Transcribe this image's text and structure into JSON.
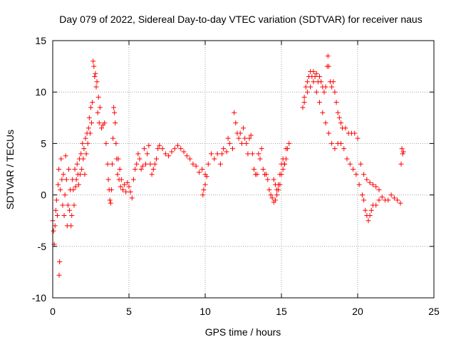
{
  "chart_data": {
    "type": "scatter",
    "title": "Day 079 of 2022, Sidereal Day-to-day VTEC variation (SDTVAR) for receiver naus",
    "xlabel": "GPS time / hours",
    "ylabel": "SDTVAR / TECUs",
    "xlim": [
      0,
      25
    ],
    "ylim": [
      -10,
      15
    ],
    "xticks": [
      0,
      5,
      10,
      15,
      20,
      25
    ],
    "yticks": [
      -10,
      -5,
      0,
      5,
      10,
      15
    ],
    "grid": true,
    "marker": "+",
    "color": "#ff0000",
    "series": [
      {
        "name": "SDTVAR",
        "points": [
          [
            0.0,
            -2.5
          ],
          [
            0.05,
            -3.5
          ],
          [
            0.1,
            -4.8
          ],
          [
            0.15,
            -3.0
          ],
          [
            0.2,
            -1.5
          ],
          [
            0.25,
            -0.5
          ],
          [
            0.3,
            -2.0
          ],
          [
            0.35,
            1.0
          ],
          [
            0.4,
            2.5
          ],
          [
            0.42,
            -7.8
          ],
          [
            0.45,
            -6.5
          ],
          [
            0.5,
            0.5
          ],
          [
            0.55,
            3.5
          ],
          [
            0.6,
            1.5
          ],
          [
            0.65,
            -1.0
          ],
          [
            0.7,
            2.0
          ],
          [
            0.75,
            -2.0
          ],
          [
            0.8,
            0.0
          ],
          [
            0.85,
            3.8
          ],
          [
            0.9,
            1.5
          ],
          [
            0.95,
            -3.0
          ],
          [
            1.0,
            -1.0
          ],
          [
            1.05,
            2.5
          ],
          [
            1.1,
            -1.5
          ],
          [
            1.15,
            0.5
          ],
          [
            1.2,
            -3.0
          ],
          [
            1.25,
            -2.0
          ],
          [
            1.3,
            1.5
          ],
          [
            1.35,
            0.5
          ],
          [
            1.4,
            -1.0
          ],
          [
            1.45,
            2.5
          ],
          [
            1.5,
            0.8
          ],
          [
            1.55,
            1.5
          ],
          [
            1.6,
            3.0
          ],
          [
            1.65,
            2.0
          ],
          [
            1.7,
            1.0
          ],
          [
            1.75,
            3.5
          ],
          [
            1.8,
            2.0
          ],
          [
            1.85,
            4.0
          ],
          [
            1.9,
            2.5
          ],
          [
            1.95,
            5.0
          ],
          [
            2.0,
            3.5
          ],
          [
            2.05,
            4.5
          ],
          [
            2.1,
            2.0
          ],
          [
            2.15,
            5.5
          ],
          [
            2.2,
            4.0
          ],
          [
            2.25,
            6.0
          ],
          [
            2.3,
            5.0
          ],
          [
            2.35,
            6.5
          ],
          [
            2.4,
            7.5
          ],
          [
            2.45,
            6.0
          ],
          [
            2.5,
            8.5
          ],
          [
            2.55,
            7.0
          ],
          [
            2.6,
            9.0
          ],
          [
            2.65,
            13.0
          ],
          [
            2.7,
            12.5
          ],
          [
            2.75,
            11.5
          ],
          [
            2.8,
            11.8
          ],
          [
            2.85,
            10.5
          ],
          [
            2.9,
            11.0
          ],
          [
            2.95,
            8.0
          ],
          [
            3.0,
            9.5
          ],
          [
            3.05,
            7.0
          ],
          [
            3.1,
            8.5
          ],
          [
            3.2,
            6.5
          ],
          [
            3.3,
            6.8
          ],
          [
            3.4,
            7.0
          ],
          [
            3.5,
            5.0
          ],
          [
            3.6,
            3.0
          ],
          [
            3.65,
            1.5
          ],
          [
            3.7,
            0.5
          ],
          [
            3.75,
            -0.5
          ],
          [
            3.8,
            -0.8
          ],
          [
            3.85,
            0.5
          ],
          [
            3.9,
            3.0
          ],
          [
            3.95,
            5.5
          ],
          [
            4.0,
            8.5
          ],
          [
            4.05,
            8.0
          ],
          [
            4.1,
            7.0
          ],
          [
            4.15,
            5.0
          ],
          [
            4.2,
            3.5
          ],
          [
            4.25,
            2.0
          ],
          [
            4.3,
            3.5
          ],
          [
            4.35,
            1.5
          ],
          [
            4.4,
            2.5
          ],
          [
            4.45,
            0.8
          ],
          [
            4.5,
            1.5
          ],
          [
            4.6,
            0.5
          ],
          [
            4.7,
            1.0
          ],
          [
            4.8,
            0.3
          ],
          [
            4.9,
            1.2
          ],
          [
            5.0,
            0.8
          ],
          [
            5.1,
            0.3
          ],
          [
            5.2,
            -0.3
          ],
          [
            5.3,
            1.5
          ],
          [
            5.4,
            2.5
          ],
          [
            5.5,
            3.0
          ],
          [
            5.6,
            4.0
          ],
          [
            5.7,
            3.5
          ],
          [
            5.8,
            2.5
          ],
          [
            5.9,
            2.8
          ],
          [
            6.0,
            4.5
          ],
          [
            6.1,
            3.0
          ],
          [
            6.2,
            4.0
          ],
          [
            6.3,
            4.8
          ],
          [
            6.4,
            3.0
          ],
          [
            6.5,
            2.0
          ],
          [
            6.6,
            2.5
          ],
          [
            6.7,
            3.0
          ],
          [
            6.8,
            3.5
          ],
          [
            6.9,
            4.5
          ],
          [
            7.0,
            4.8
          ],
          [
            7.2,
            4.5
          ],
          [
            7.4,
            4.0
          ],
          [
            7.6,
            3.8
          ],
          [
            7.8,
            4.2
          ],
          [
            8.0,
            4.5
          ],
          [
            8.2,
            4.8
          ],
          [
            8.4,
            4.5
          ],
          [
            8.6,
            4.2
          ],
          [
            8.8,
            3.8
          ],
          [
            9.0,
            3.5
          ],
          [
            9.2,
            3.0
          ],
          [
            9.4,
            2.8
          ],
          [
            9.6,
            2.2
          ],
          [
            9.8,
            2.5
          ],
          [
            10.0,
            2.0
          ],
          [
            10.1,
            1.8
          ],
          [
            9.85,
            0.0
          ],
          [
            9.9,
            0.5
          ],
          [
            10.0,
            1.0
          ],
          [
            10.2,
            3.0
          ],
          [
            10.4,
            4.0
          ],
          [
            10.6,
            3.5
          ],
          [
            10.8,
            4.0
          ],
          [
            11.0,
            3.0
          ],
          [
            11.1,
            4.0
          ],
          [
            11.2,
            4.5
          ],
          [
            11.4,
            4.2
          ],
          [
            11.5,
            5.5
          ],
          [
            11.6,
            5.0
          ],
          [
            11.8,
            4.5
          ],
          [
            11.9,
            8.0
          ],
          [
            12.0,
            7.0
          ],
          [
            12.1,
            6.0
          ],
          [
            12.2,
            5.5
          ],
          [
            12.3,
            6.0
          ],
          [
            12.4,
            5.0
          ],
          [
            12.5,
            6.5
          ],
          [
            12.6,
            5.5
          ],
          [
            12.7,
            5.0
          ],
          [
            12.8,
            4.0
          ],
          [
            12.9,
            5.5
          ],
          [
            13.0,
            5.8
          ],
          [
            13.1,
            4.0
          ],
          [
            13.2,
            2.5
          ],
          [
            13.3,
            2.0
          ],
          [
            13.4,
            2.0
          ],
          [
            13.5,
            4.0
          ],
          [
            13.6,
            3.5
          ],
          [
            13.7,
            4.5
          ],
          [
            13.8,
            2.5
          ],
          [
            13.9,
            2.0
          ],
          [
            14.0,
            2.0
          ],
          [
            14.1,
            1.5
          ],
          [
            14.2,
            0.5
          ],
          [
            14.3,
            0.0
          ],
          [
            14.4,
            -0.3
          ],
          [
            14.5,
            -0.7
          ],
          [
            14.6,
            -0.5
          ],
          [
            14.7,
            0.0
          ],
          [
            14.8,
            0.5
          ],
          [
            14.9,
            1.0
          ],
          [
            15.0,
            2.0
          ],
          [
            15.1,
            2.5
          ],
          [
            15.2,
            3.0
          ],
          [
            15.3,
            3.5
          ],
          [
            15.4,
            4.5
          ],
          [
            15.5,
            5.0
          ],
          [
            14.5,
            1.5
          ],
          [
            14.6,
            1.0
          ],
          [
            14.7,
            0.5
          ],
          [
            14.8,
            1.0
          ],
          [
            14.9,
            2.0
          ],
          [
            15.0,
            3.0
          ],
          [
            15.1,
            3.5
          ],
          [
            15.2,
            3.0
          ],
          [
            15.3,
            4.5
          ],
          [
            16.4,
            8.5
          ],
          [
            16.5,
            9.5
          ],
          [
            16.6,
            10.5
          ],
          [
            16.7,
            11.0
          ],
          [
            16.8,
            11.5
          ],
          [
            16.9,
            12.0
          ],
          [
            17.0,
            11.5
          ],
          [
            17.1,
            12.0
          ],
          [
            17.2,
            11.5
          ],
          [
            17.3,
            11.8
          ],
          [
            17.4,
            11.0
          ],
          [
            17.5,
            11.5
          ],
          [
            17.6,
            11.0
          ],
          [
            17.7,
            10.5
          ],
          [
            17.8,
            10.0
          ],
          [
            17.9,
            10.5
          ],
          [
            18.0,
            12.5
          ],
          [
            18.05,
            13.5
          ],
          [
            18.1,
            12.5
          ],
          [
            18.2,
            11.0
          ],
          [
            18.3,
            10.5
          ],
          [
            18.4,
            11.0
          ],
          [
            18.5,
            10.0
          ],
          [
            18.6,
            9.0
          ],
          [
            18.7,
            8.0
          ],
          [
            18.8,
            7.5
          ],
          [
            18.9,
            7.0
          ],
          [
            19.0,
            6.5
          ],
          [
            19.2,
            6.5
          ],
          [
            19.4,
            6.0
          ],
          [
            19.6,
            6.0
          ],
          [
            19.8,
            6.0
          ],
          [
            20.0,
            5.5
          ],
          [
            16.5,
            9.0
          ],
          [
            16.7,
            10.0
          ],
          [
            16.9,
            10.5
          ],
          [
            17.1,
            11.0
          ],
          [
            17.3,
            10.0
          ],
          [
            17.5,
            9.0
          ],
          [
            17.7,
            8.0
          ],
          [
            17.9,
            7.0
          ],
          [
            18.1,
            6.0
          ],
          [
            18.3,
            5.0
          ],
          [
            18.5,
            4.5
          ],
          [
            18.7,
            5.0
          ],
          [
            18.9,
            5.0
          ],
          [
            19.1,
            4.5
          ],
          [
            19.3,
            3.5
          ],
          [
            19.5,
            3.0
          ],
          [
            19.7,
            2.5
          ],
          [
            19.9,
            2.0
          ],
          [
            20.1,
            1.0
          ],
          [
            20.3,
            0.0
          ],
          [
            20.4,
            -0.5
          ],
          [
            20.5,
            -1.5
          ],
          [
            20.6,
            -2.0
          ],
          [
            20.7,
            -2.5
          ],
          [
            20.8,
            -2.0
          ],
          [
            20.9,
            -1.5
          ],
          [
            21.0,
            -1.0
          ],
          [
            21.2,
            -1.0
          ],
          [
            21.4,
            -0.5
          ],
          [
            21.6,
            -0.2
          ],
          [
            21.8,
            -0.5
          ],
          [
            22.0,
            -0.5
          ],
          [
            22.2,
            0.0
          ],
          [
            22.4,
            -0.3
          ],
          [
            22.6,
            -0.5
          ],
          [
            22.8,
            -0.8
          ],
          [
            20.2,
            3.0
          ],
          [
            20.4,
            2.0
          ],
          [
            20.6,
            1.5
          ],
          [
            20.8,
            1.2
          ],
          [
            21.0,
            1.0
          ],
          [
            21.2,
            0.8
          ],
          [
            21.4,
            0.5
          ],
          [
            22.85,
            3.0
          ],
          [
            22.9,
            4.5
          ],
          [
            22.95,
            4.0
          ],
          [
            23.0,
            4.2
          ]
        ]
      }
    ]
  }
}
